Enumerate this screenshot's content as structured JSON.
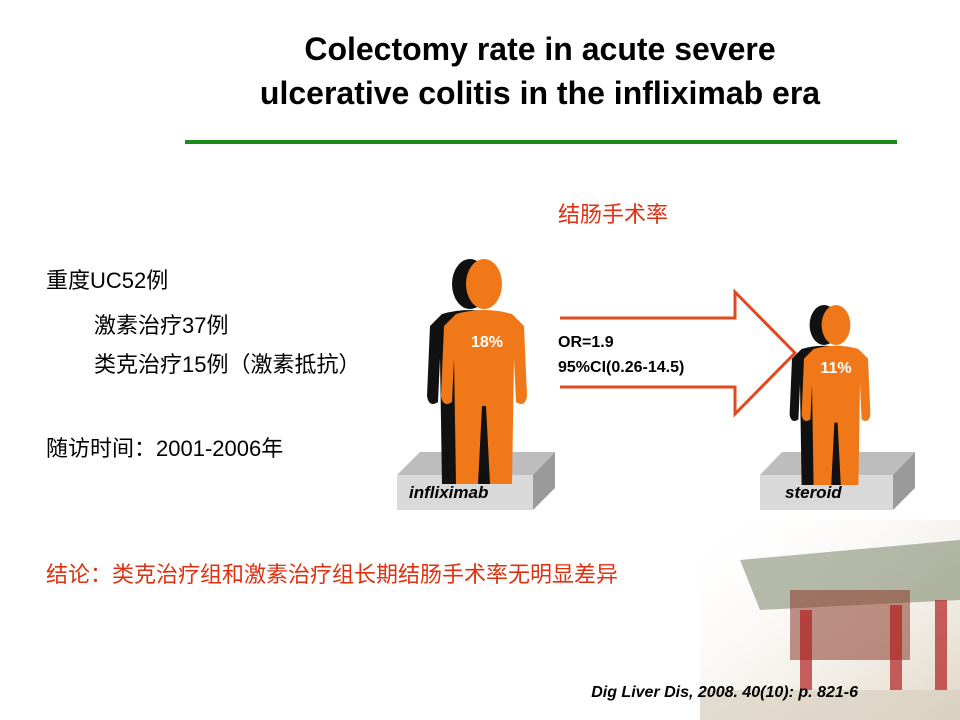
{
  "title": {
    "lines": [
      "Colectomy rate in acute severe",
      "ulcerative colitis in the infliximab era"
    ]
  },
  "outcome_label": "结肠手术率",
  "bullets": [
    "重度UC52例",
    "激素治疗37例",
    "类克治疗15例（激素抵抗）",
    "随访时间：2001-2006年"
  ],
  "groups": [
    {
      "label": "infliximab",
      "rate": "18%"
    },
    {
      "label": "steroid",
      "rate": "11%"
    }
  ],
  "comparison": [
    "OR=1.9",
    "95%CI(0.26-14.5)"
  ],
  "conclusion": "结论：类克治疗组和激素治疗组长期结肠手术率无明显差异",
  "citation": "Dig Liver Dis, 2008. 40(10): p. 821-6"
}
